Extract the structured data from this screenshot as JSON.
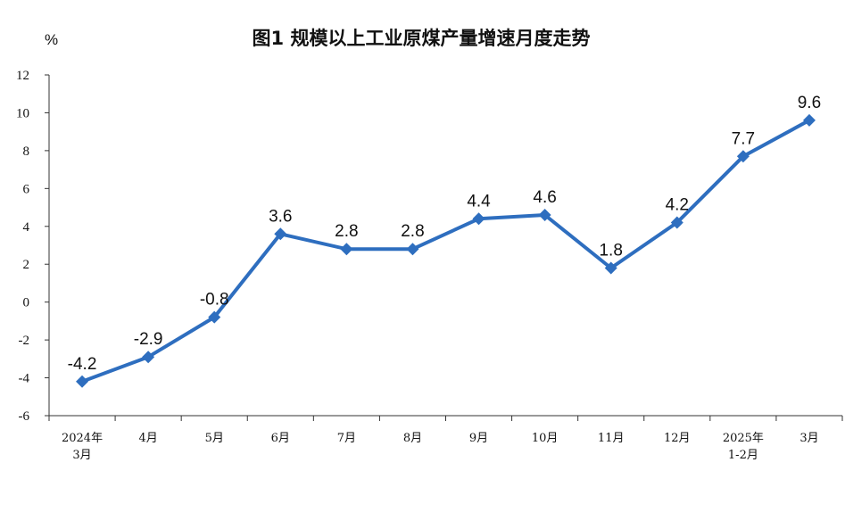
{
  "chart_data": {
    "type": "line",
    "title": "图1  规模以上工业原煤产量增速月度走势",
    "unit": "%",
    "categories": [
      [
        "2024年",
        "3月"
      ],
      [
        "4月"
      ],
      [
        "5月"
      ],
      [
        "6月"
      ],
      [
        "7月"
      ],
      [
        "8月"
      ],
      [
        "9月"
      ],
      [
        "10月"
      ],
      [
        "11月"
      ],
      [
        "12月"
      ],
      [
        "2025年",
        "1-2月"
      ],
      [
        "3月"
      ]
    ],
    "series": [
      {
        "values": [
          -4.2,
          -2.9,
          -0.8,
          3.6,
          2.8,
          2.8,
          4.4,
          4.6,
          1.8,
          4.2,
          7.7,
          9.6
        ]
      }
    ],
    "data_labels": [
      "-4.2",
      "-2.9",
      "-0.8",
      "3.6",
      "2.8",
      "2.8",
      "4.4",
      "4.6",
      "1.8",
      "4.2",
      "7.7",
      "9.6"
    ],
    "ylim": [
      -6,
      12
    ],
    "yticks": [
      "12",
      "10",
      "8",
      "6",
      "4",
      "2",
      "0",
      "-2",
      "-4",
      "-6"
    ],
    "grid": false,
    "legend": "none",
    "line_color": "#2E6EBF"
  }
}
